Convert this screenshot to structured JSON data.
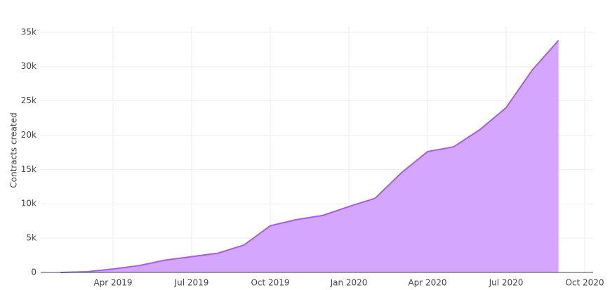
{
  "chart_data": {
    "type": "area",
    "y_label": "Contracts created",
    "x": [
      "2019-02",
      "2019-03",
      "2019-04",
      "2019-05",
      "2019-06",
      "2019-07",
      "2019-08",
      "2019-09",
      "2019-10",
      "2019-11",
      "2019-12",
      "2020-01",
      "2020-02",
      "2020-03",
      "2020-04",
      "2020-05",
      "2020-06",
      "2020-07",
      "2020-08",
      "2020-09"
    ],
    "values": [
      0,
      100,
      500,
      1000,
      1800,
      2300,
      2800,
      4000,
      6800,
      7700,
      8300,
      9600,
      10800,
      14500,
      17600,
      18300,
      20800,
      24000,
      29500,
      33800
    ],
    "color": "#a55ee6",
    "fill_color": "#d5a6fd",
    "xlim": [
      "2019-01",
      "2020-10"
    ],
    "xticks": [
      {
        "value": "2019-04",
        "label": "Apr 2019"
      },
      {
        "value": "2019-07",
        "label": "Jul 2019"
      },
      {
        "value": "2019-10",
        "label": "Oct 2019"
      },
      {
        "value": "2020-01",
        "label": "Jan 2020"
      },
      {
        "value": "2020-04",
        "label": "Apr 2020"
      },
      {
        "value": "2020-07",
        "label": "Jul 2020"
      },
      {
        "value": "2020-10",
        "label": "Oct 2020"
      }
    ],
    "ylim": [
      0,
      35800
    ],
    "yticks": [
      0,
      {
        "value": 5000,
        "label": "5k"
      },
      {
        "value": 10000,
        "label": "10k"
      },
      {
        "value": 15000,
        "label": "15k"
      },
      {
        "value": 20000,
        "label": "20k"
      },
      {
        "value": 25000,
        "label": "25k"
      },
      {
        "value": 30000,
        "label": "30k"
      },
      {
        "value": 35000,
        "label": "35k"
      }
    ],
    "grid": true
  }
}
